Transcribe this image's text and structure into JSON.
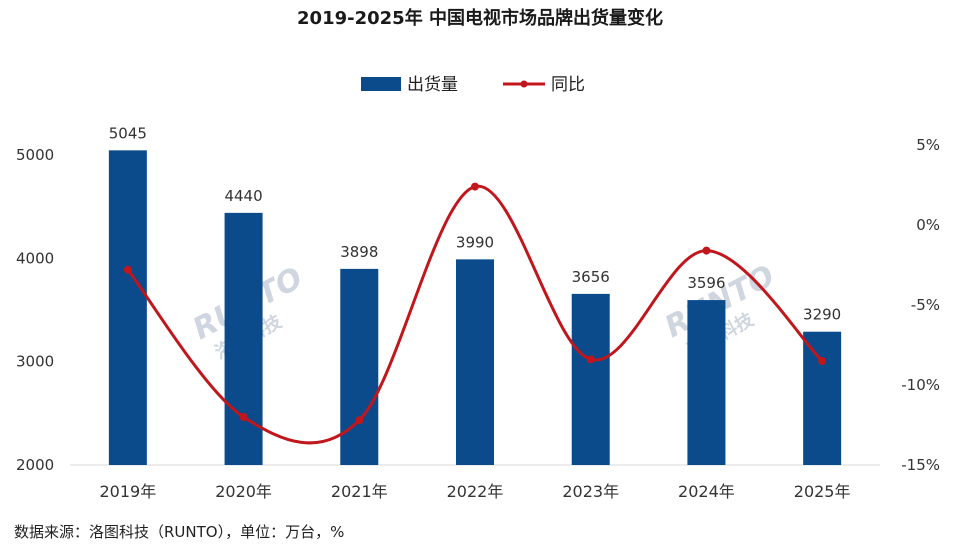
{
  "chart_data": {
    "type": "bar",
    "title": "2019-2025年 中国电视市场品牌出货量变化",
    "categories": [
      "2019年",
      "2020年",
      "2021年",
      "2022年",
      "2023年",
      "2024年",
      "2025年"
    ],
    "series": [
      {
        "name": "出货量",
        "type": "bar",
        "axis": "left",
        "values": [
          5045,
          4440,
          3898,
          3990,
          3656,
          3596,
          3290
        ]
      },
      {
        "name": "同比",
        "type": "line",
        "axis": "right",
        "values": [
          -2.8,
          -12.0,
          -12.2,
          2.4,
          -8.4,
          -1.6,
          -8.5
        ]
      }
    ],
    "y_left": {
      "range": [
        2000,
        5000
      ],
      "ticks": [
        "2000",
        "3000",
        "4000",
        "5000"
      ]
    },
    "y_right": {
      "range": [
        -15,
        5
      ],
      "ticks": [
        "-15%",
        "-10%",
        "-5%",
        "0%",
        "5%"
      ]
    },
    "legend_position": "top-center",
    "grid": false,
    "colors": {
      "bar": "#0b4a8b",
      "line": "#c0161c"
    },
    "source": "数据来源：洛图科技（RUNTO），单位：万台，%",
    "watermark": [
      "RUNTO",
      "洛图科技"
    ]
  }
}
